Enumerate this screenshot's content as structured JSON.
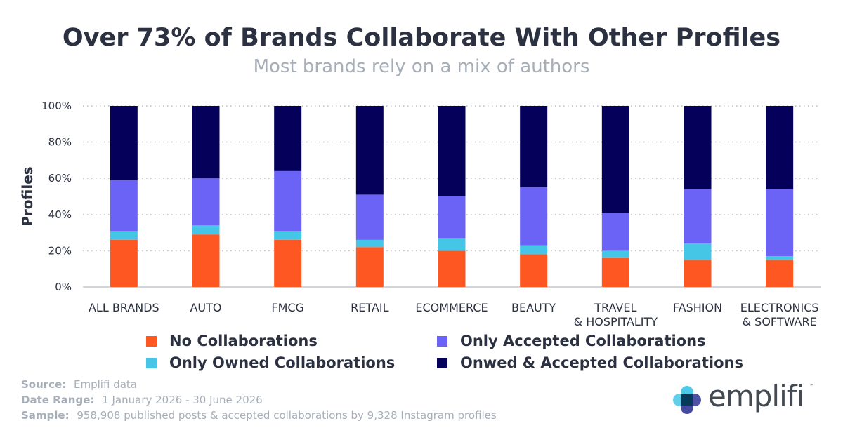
{
  "header": {
    "title": "Over 73% of Brands Collaborate With Other Profiles",
    "subtitle": "Most brands rely on a mix of authors"
  },
  "chart_data": {
    "type": "bar",
    "stacked": true,
    "ylabel": "Profiles",
    "ylim": [
      0,
      100
    ],
    "y_ticks": [
      "0%",
      "20%",
      "40%",
      "60%",
      "80%",
      "100%"
    ],
    "grid": "horizontal dotted",
    "categories": [
      [
        "ALL BRANDS"
      ],
      [
        "AUTO"
      ],
      [
        "FMCG"
      ],
      [
        "RETAIL"
      ],
      [
        "ECOMMERCE"
      ],
      [
        "BEAUTY"
      ],
      [
        "TRAVEL",
        "& HOSPITALITY"
      ],
      [
        "FASHION"
      ],
      [
        "ELECTRONICS",
        "& SOFTWARE"
      ]
    ],
    "series": [
      {
        "name": "No Collaborations",
        "color": "#ff5722",
        "values": [
          26,
          29,
          26,
          22,
          20,
          18,
          16,
          15,
          15
        ]
      },
      {
        "name": "Only Owned Collaborations",
        "color": "#45c6e6",
        "values": [
          5,
          5,
          5,
          4,
          7,
          5,
          4,
          9,
          2
        ]
      },
      {
        "name": "Only Accepted Collaborations",
        "color": "#6b63f5",
        "values": [
          28,
          26,
          33,
          25,
          23,
          32,
          21,
          30,
          37
        ]
      },
      {
        "name": "Onwed & Accepted Collaborations",
        "color": "#050059",
        "values": [
          41,
          40,
          36,
          49,
          50,
          45,
          59,
          46,
          46
        ]
      }
    ],
    "legend_position": "bottom"
  },
  "footer": {
    "source_label": "Source:",
    "source_value": "Emplifi data",
    "date_label": "Date Range:",
    "date_value": "1 January 2026 - 30 June 2026",
    "sample_label": "Sample:",
    "sample_value": "958,908 published posts & accepted collaborations by 9,328 Instagram profiles"
  },
  "brand": {
    "logo_text": "emplifi",
    "trademark": "™",
    "logo_colors": [
      "#45c6e6",
      "#3b3f99",
      "#063a59"
    ]
  }
}
